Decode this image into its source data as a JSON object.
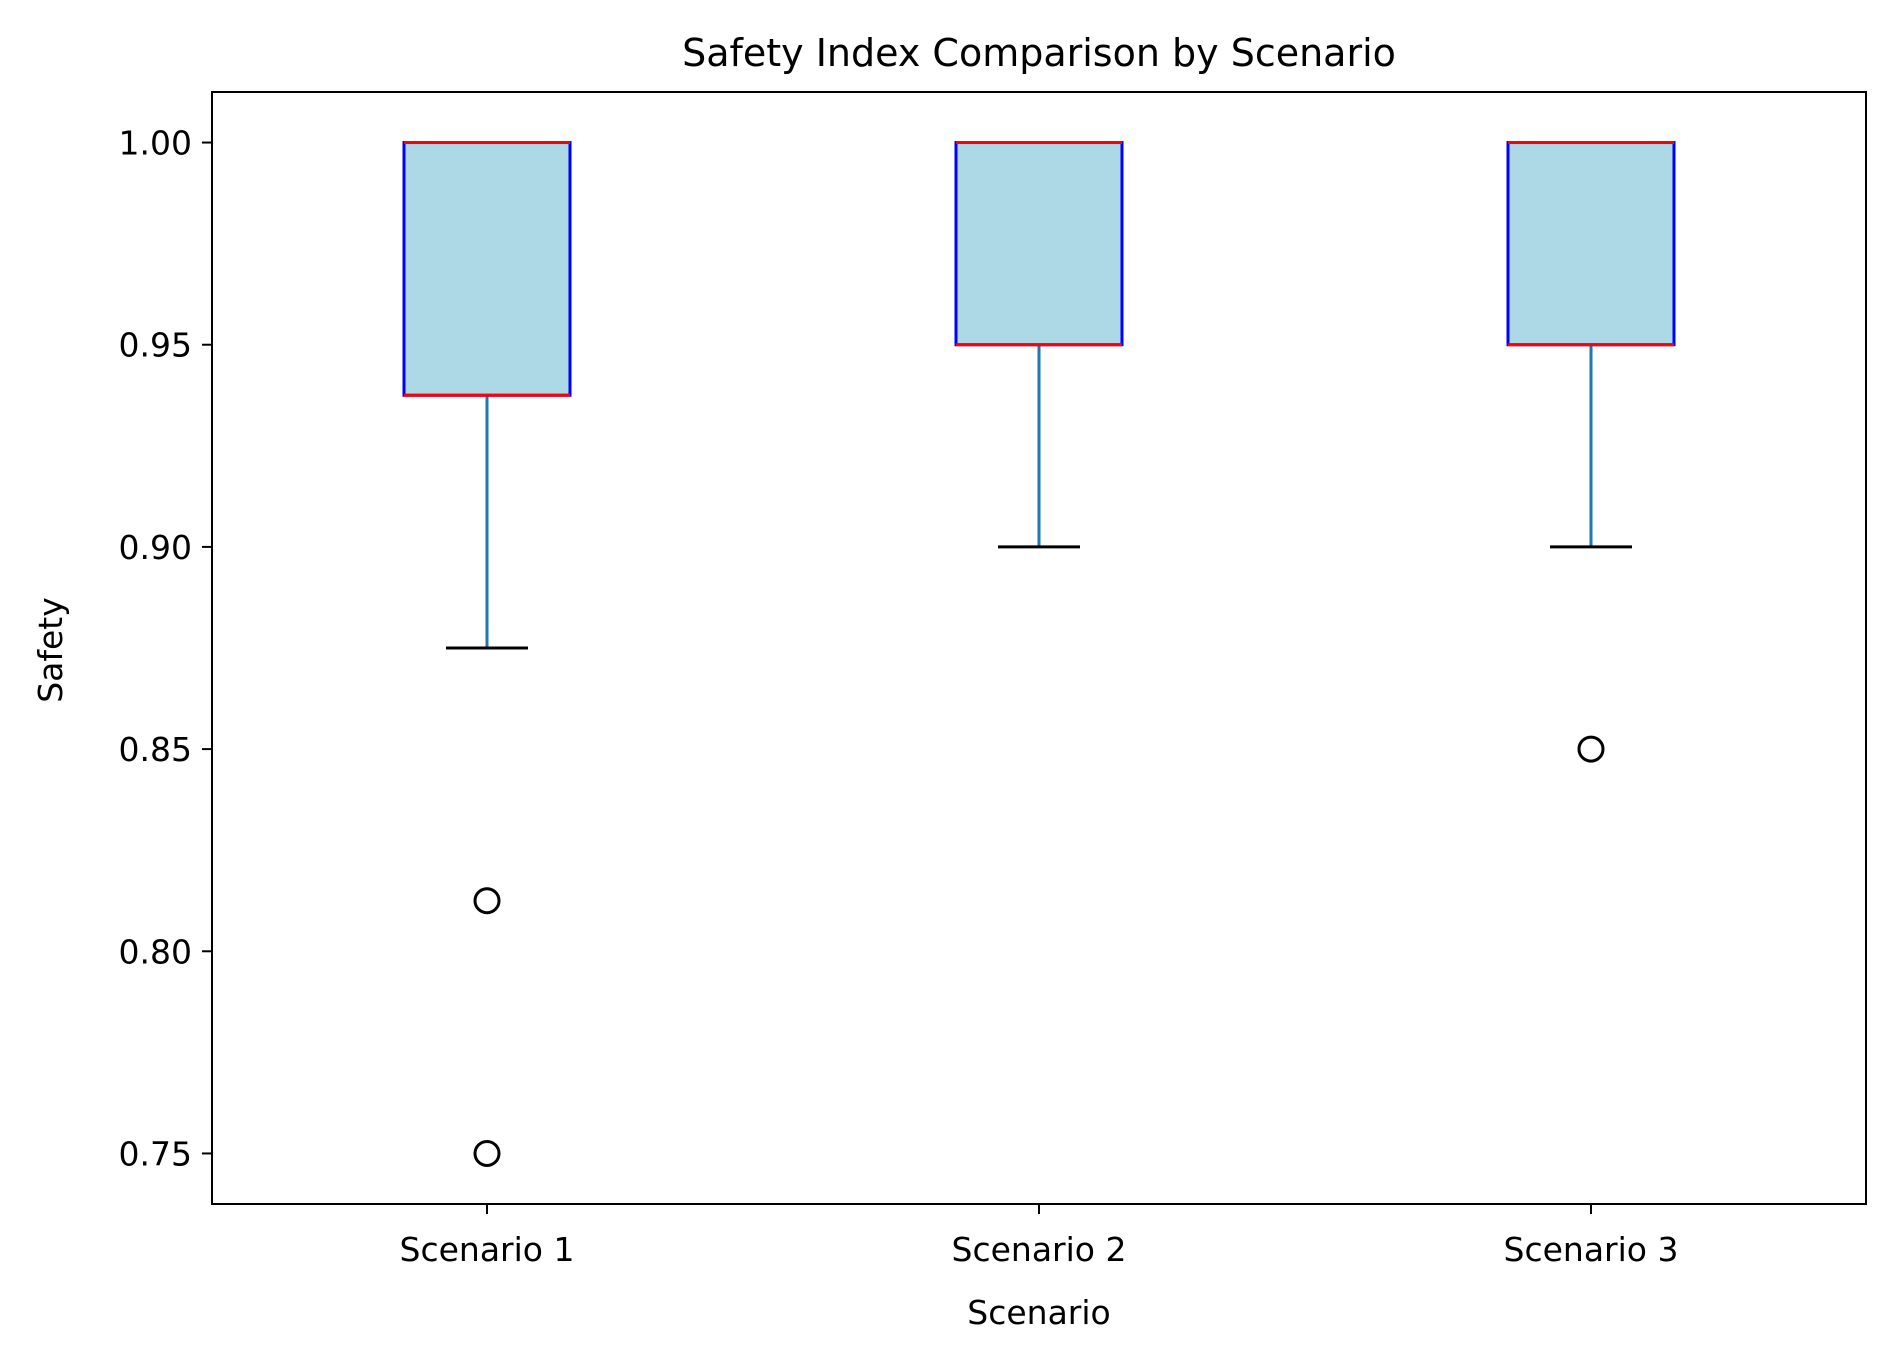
{
  "chart_data": {
    "type": "box",
    "title": "Safety Index Comparison by Scenario",
    "xlabel": "Scenario",
    "ylabel": "Safety",
    "categories": [
      "Scenario 1",
      "Scenario 2",
      "Scenario 3"
    ],
    "ylim": [
      0.7375,
      1.0125
    ],
    "yticks": [
      "0.75",
      "0.80",
      "0.85",
      "0.90",
      "0.95",
      "1.00"
    ],
    "grid": false,
    "legend": "none",
    "boxes": [
      {
        "category": "Scenario 1",
        "whisker_low": 0.875,
        "q1": 0.9375,
        "median": 1.0,
        "q3": 1.0,
        "whisker_high": 1.0,
        "outliers": [
          0.8125,
          0.75
        ]
      },
      {
        "category": "Scenario 2",
        "whisker_low": 0.9,
        "q1": 0.95,
        "median": 1.0,
        "q3": 1.0,
        "whisker_high": 1.0,
        "outliers": []
      },
      {
        "category": "Scenario 3",
        "whisker_low": 0.9,
        "q1": 0.95,
        "median": 1.0,
        "q3": 1.0,
        "whisker_high": 1.0,
        "outliers": [
          0.85
        ]
      }
    ],
    "colors": {
      "box_fill": "#add8e6",
      "box_edge": "#0000ff",
      "median": "#ff0000",
      "whisker": "#1f77b4",
      "cap": "#000000",
      "outlier_edge": "#000000",
      "axes": "#000000"
    }
  }
}
